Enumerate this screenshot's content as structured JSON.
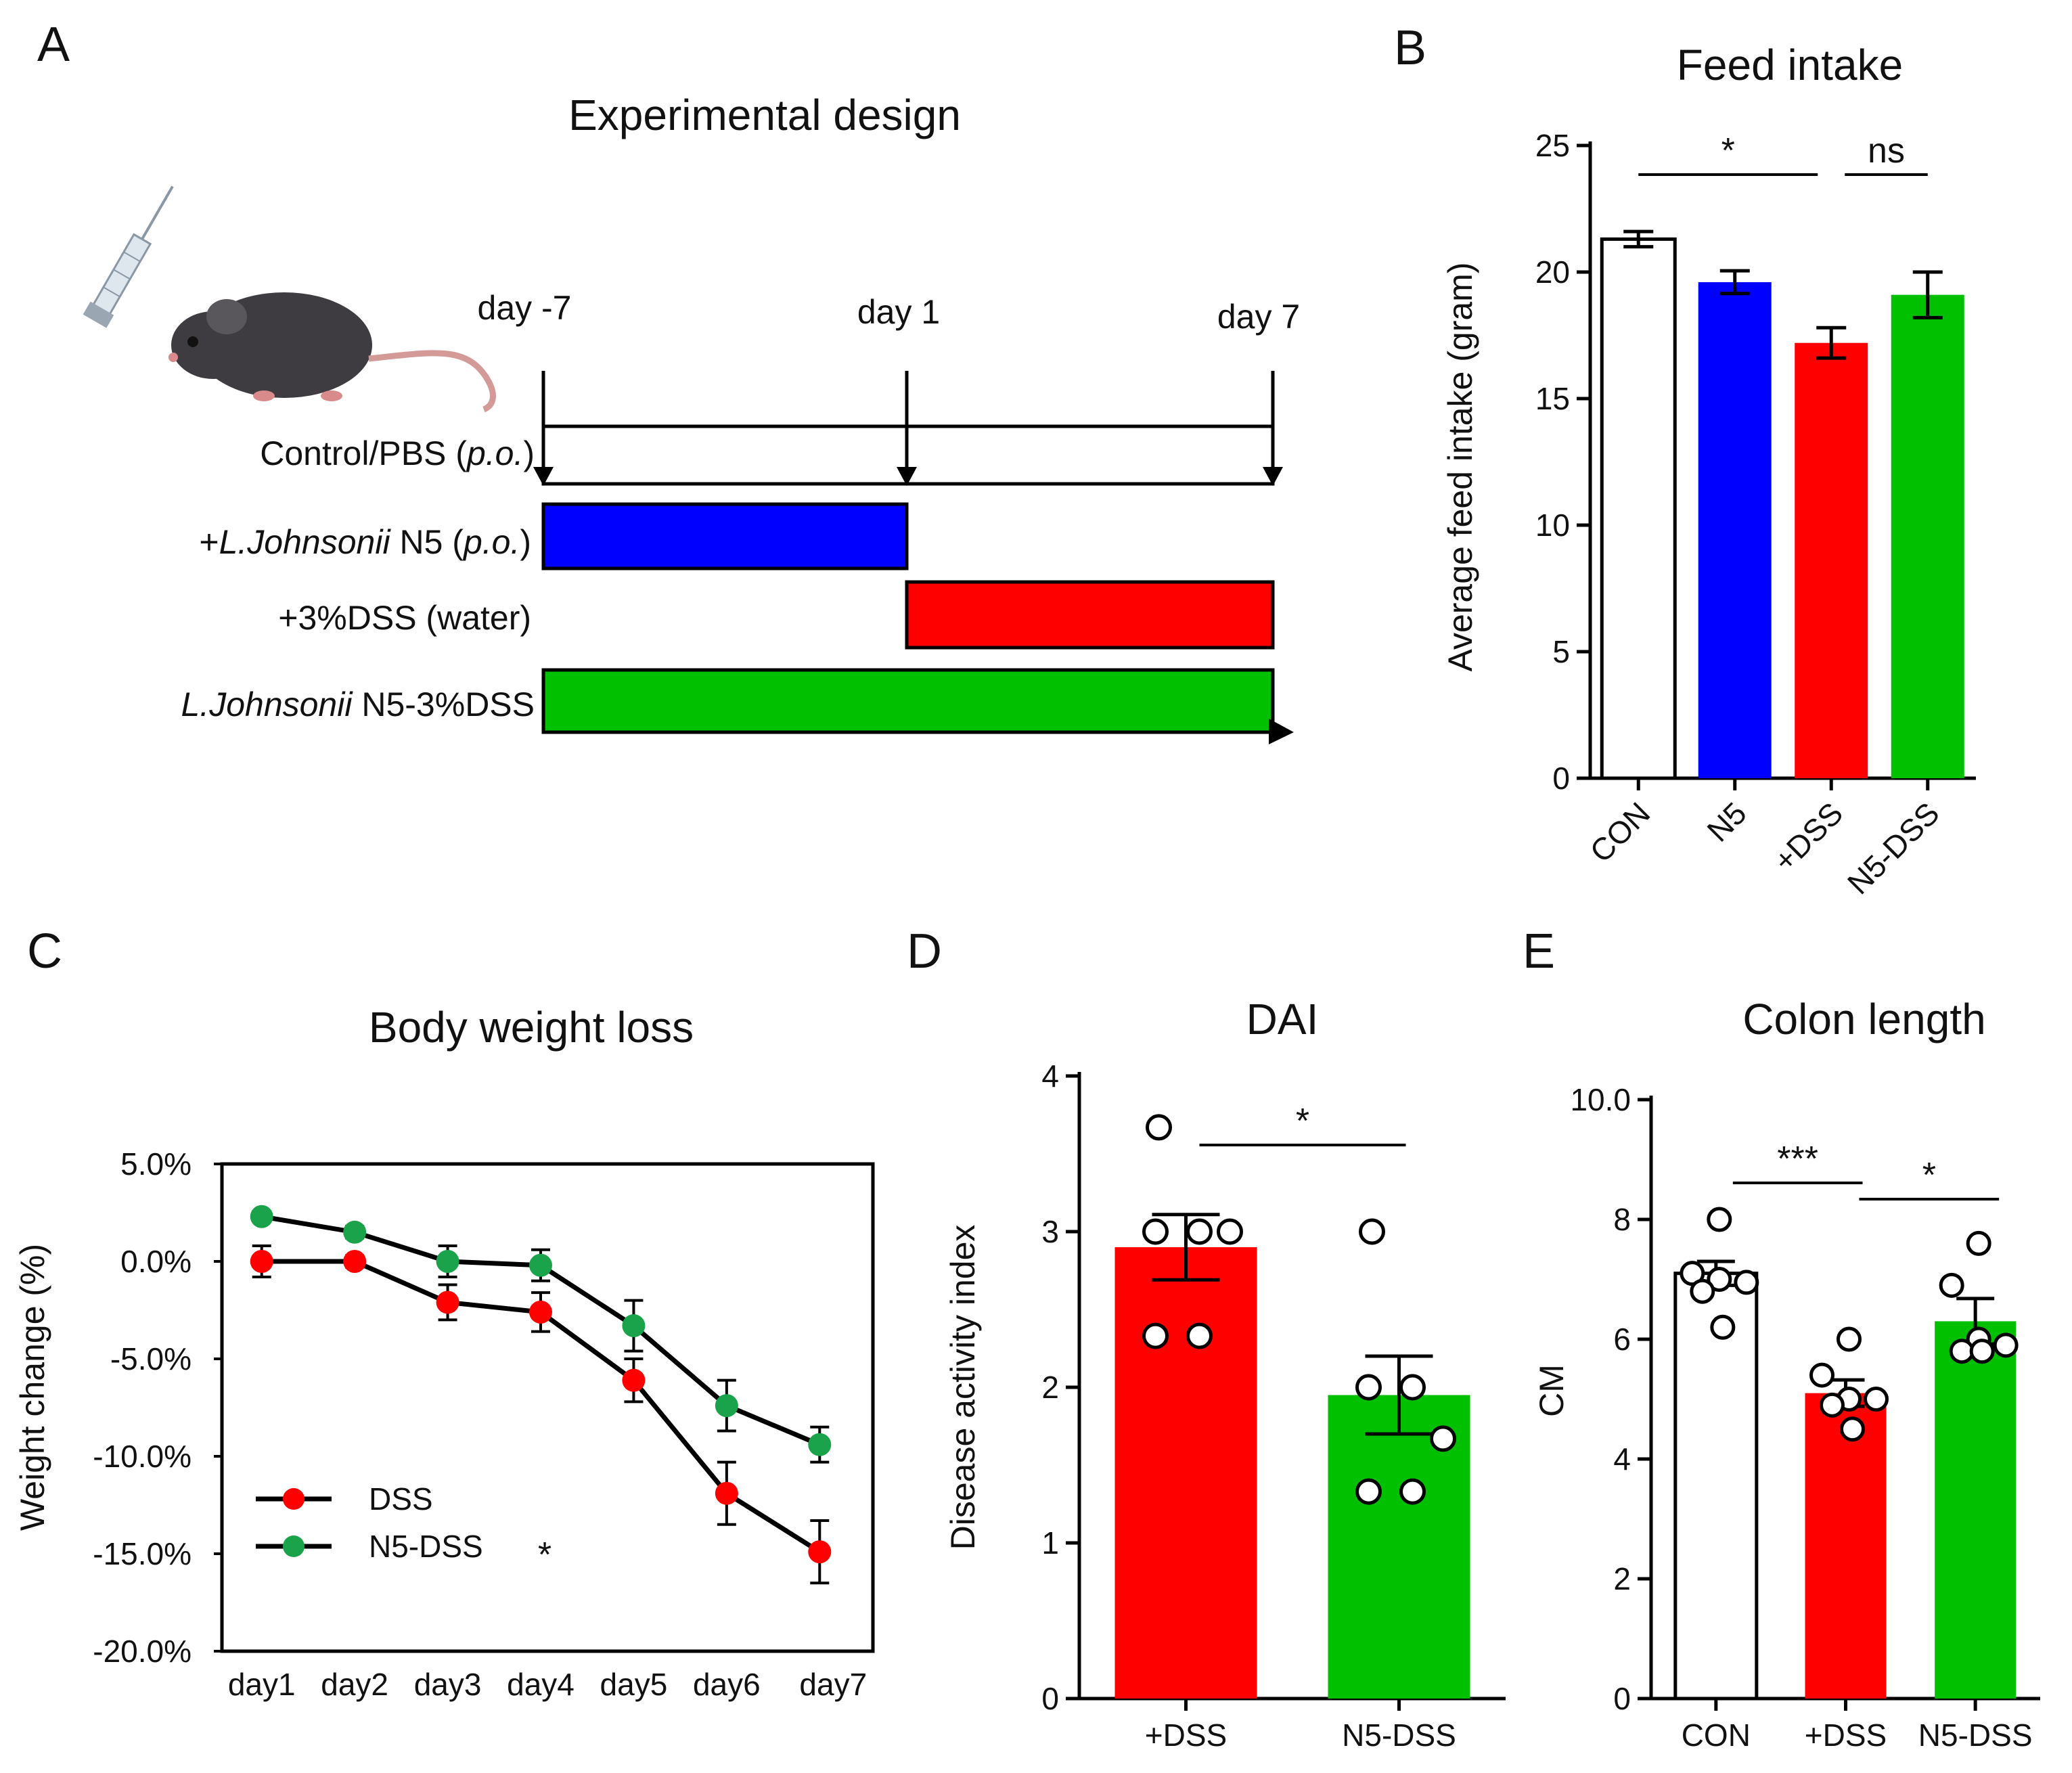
{
  "colors": {
    "con": "#ffffff",
    "n5": "#0000ff",
    "dss": "#ff0000",
    "n5_dss": "#00c000",
    "n5_dss_line": "#1aa34a",
    "axis": "#000000"
  },
  "panels": {
    "A": "A",
    "B": "B",
    "C": "C",
    "D": "D",
    "E": "E"
  },
  "design": {
    "title": "Experimental design",
    "day_labels": [
      "day -7",
      "day 1",
      "day 7"
    ],
    "rows": [
      {
        "pre": "Control/PBS (",
        "italic": "p.o.",
        "post": ")"
      },
      {
        "pre": "+",
        "italic": "L.Johnsonii",
        "post": " N5 (",
        "italic2": "p.o.",
        "post2": ")"
      },
      {
        "pre": "+3%DSS (water)",
        "italic": "",
        "post": ""
      },
      {
        "pre": "",
        "italic": "L.Johnsonii",
        "post": " N5-3%DSS"
      }
    ],
    "mouse_icon": "mouse-icon",
    "syringe_icon": "syringe-icon"
  },
  "chart_data": [
    {
      "id": "B",
      "type": "bar",
      "title": "Feed intake",
      "ylabel": "Average feed intake (gram)",
      "xlabel": "",
      "categories": [
        "CON",
        "N5",
        "+DSS",
        "N5-DSS"
      ],
      "values": [
        21.3,
        19.6,
        17.2,
        19.1
      ],
      "errors": [
        0.3,
        0.45,
        0.6,
        0.9
      ],
      "ylim": [
        0,
        25
      ],
      "yticks": [
        "0",
        "5",
        "10",
        "15",
        "20",
        "25"
      ],
      "annotations": [
        {
          "text": "*",
          "from": "CON",
          "to": "+DSS"
        },
        {
          "text": "ns",
          "from": "+DSS",
          "to": "N5-DSS"
        }
      ]
    },
    {
      "id": "C",
      "type": "line",
      "title": "Body weight loss",
      "ylabel": "Weight change (%)",
      "xlabel": "",
      "categories": [
        "day1",
        "day2",
        "day3",
        "day4",
        "day5",
        "day6",
        "day7"
      ],
      "series": [
        {
          "name": "DSS",
          "values": [
            0.0,
            0.0,
            -2.1,
            -2.6,
            -6.1,
            -11.9,
            -14.9
          ],
          "errors": [
            0.8,
            0.3,
            0.9,
            1.0,
            1.1,
            1.6,
            1.6
          ]
        },
        {
          "name": "N5-DSS",
          "values": [
            2.3,
            1.5,
            0.0,
            -0.2,
            -3.3,
            -7.4,
            -9.4
          ],
          "errors": [
            0.2,
            0.3,
            0.8,
            0.8,
            1.3,
            1.3,
            0.9
          ]
        }
      ],
      "ylim": [
        -20,
        5
      ],
      "yticks": [
        "-20.0%",
        "-15.0%",
        "-10.0%",
        "-5.0%",
        "0.0%",
        "5.0%"
      ],
      "legend_mark": "*"
    },
    {
      "id": "D",
      "type": "bar",
      "title": "DAI",
      "ylabel": "Disease activity index",
      "xlabel": "",
      "categories": [
        "+DSS",
        "N5-DSS"
      ],
      "values": [
        2.9,
        1.95
      ],
      "errors": [
        0.21,
        0.25
      ],
      "points": [
        [
          3.67,
          3.0,
          3.0,
          3.0,
          2.33,
          2.33
        ],
        [
          3.0,
          2.0,
          2.0,
          1.67,
          1.33,
          1.33
        ]
      ],
      "ylim": [
        0,
        4
      ],
      "yticks": [
        "0",
        "1",
        "2",
        "3",
        "4"
      ],
      "annotations": [
        {
          "text": "*",
          "from": "+DSS",
          "to": "N5-DSS"
        }
      ]
    },
    {
      "id": "E",
      "type": "bar",
      "title": "Colon length",
      "ylabel": "CM",
      "xlabel": "",
      "categories": [
        "CON",
        "+DSS",
        "N5-DSS"
      ],
      "values": [
        7.1,
        5.1,
        6.3
      ],
      "errors": [
        0.2,
        0.22,
        0.38
      ],
      "points": [
        [
          8.0,
          7.1,
          7.0,
          6.95,
          6.8,
          6.2
        ],
        [
          6.0,
          5.4,
          5.0,
          5.0,
          4.9,
          4.5
        ],
        [
          7.6,
          6.9,
          6.0,
          5.9,
          5.8,
          5.8
        ]
      ],
      "ylim": [
        0,
        10
      ],
      "yticks": [
        "0",
        "2",
        "4",
        "6",
        "8",
        "10.0"
      ],
      "annotations": [
        {
          "text": "***",
          "from": "CON",
          "to": "+DSS"
        },
        {
          "text": "*",
          "from": "+DSS",
          "to": "N5-DSS"
        }
      ]
    }
  ]
}
